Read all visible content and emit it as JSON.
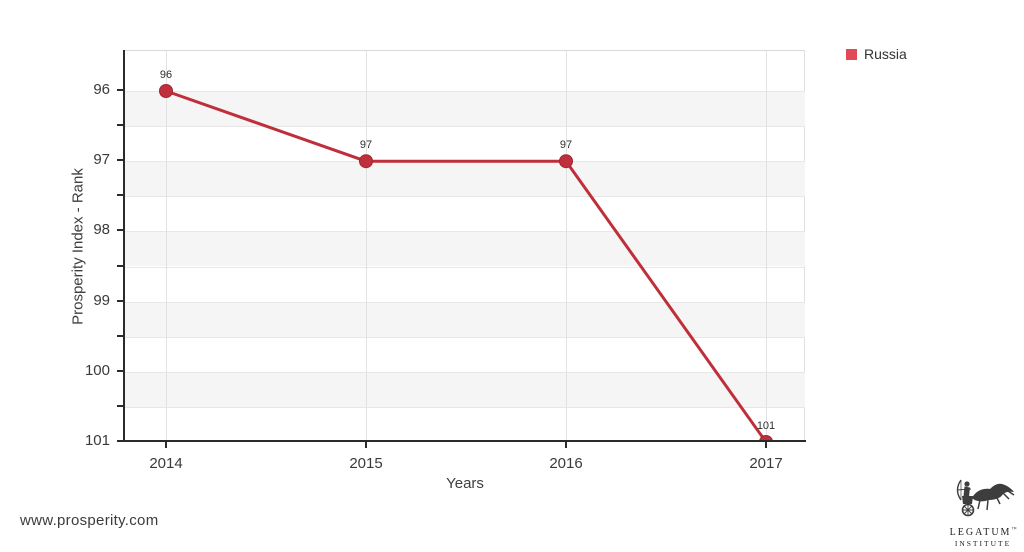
{
  "chart_data": {
    "type": "line",
    "title": "",
    "x": [
      2014,
      2015,
      2016,
      2017
    ],
    "series": [
      {
        "name": "Russia",
        "values": [
          96,
          97,
          97,
          101
        ],
        "color": "#bf2f3b",
        "marker_color": "#c0303c",
        "marker_stroke": "#a1242f"
      }
    ],
    "xlabel": "Years",
    "ylabel": "Prosperity Index - Rank",
    "ylim": [
      96,
      101
    ],
    "y_ticks": [
      96,
      97,
      98,
      99,
      100,
      101
    ],
    "y_minor_step": 0.5,
    "y_inverted": true,
    "grid": true,
    "band_color": "#f5f5f5",
    "legend_position": "top-right"
  },
  "legend": {
    "items": [
      {
        "label": "Russia",
        "color": "#e04955"
      }
    ]
  },
  "footer": {
    "website": "www.prosperity.com"
  },
  "logo": {
    "line1": "LEGATUM",
    "trademark": "™",
    "line2": "INSTITUTE"
  }
}
